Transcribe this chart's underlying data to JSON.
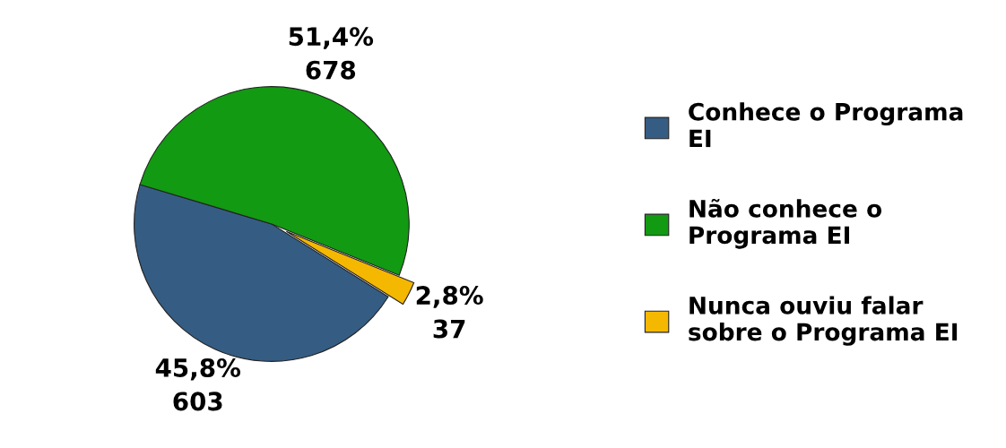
{
  "chart_data": {
    "type": "pie",
    "categories": [
      "Conhece o Programa EI",
      "Não conhece o Programa EI",
      "Nunca ouviu falar sobre o Programa EI"
    ],
    "values": [
      603,
      678,
      37
    ],
    "colors": [
      "#355d83",
      "#129a12",
      "#f5b800"
    ],
    "value_labels": [
      "45,8%\n603",
      "51,4%\n678",
      "2,8%\n37"
    ],
    "legend": "right"
  }
}
